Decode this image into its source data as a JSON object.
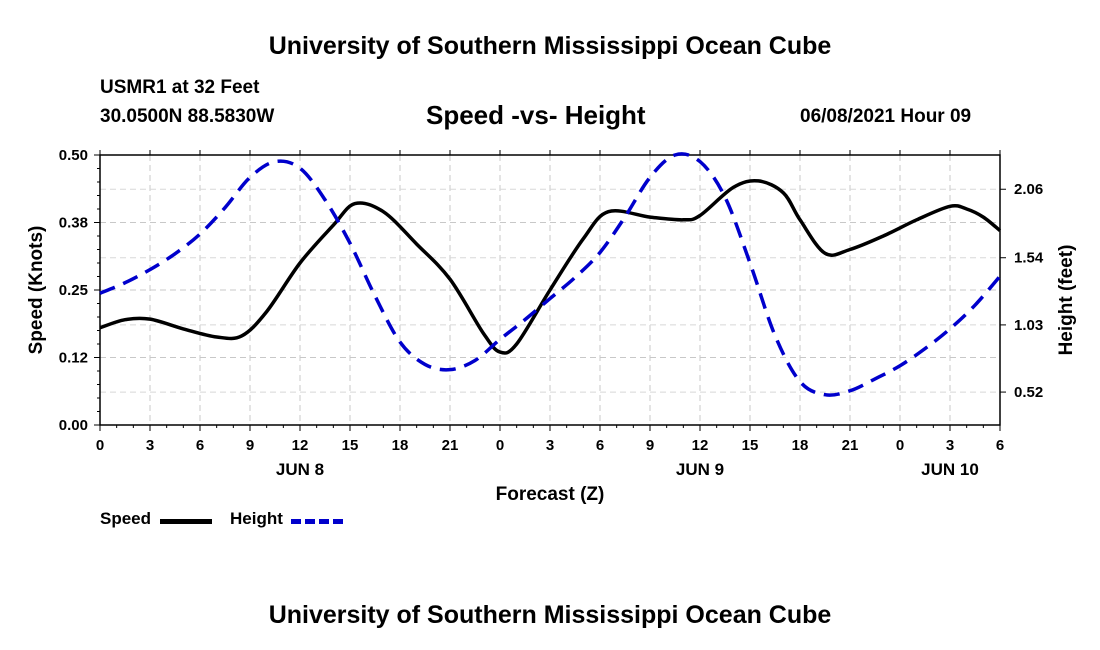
{
  "header": {
    "title": "University of Southern Mississippi Ocean Cube",
    "station": "USMR1 at 32 Feet",
    "coords": "30.0500N  88.5830W",
    "subtitle": "Speed -vs- Height",
    "datetime": "06/08/2021 Hour 09"
  },
  "footer": {
    "title": "University of Southern Mississippi Ocean Cube"
  },
  "legend": {
    "speed_label": "Speed",
    "height_label": "Height"
  },
  "chart_data": {
    "type": "line",
    "title": "Speed -vs- Height",
    "xlabel": "Forecast (Z)",
    "ylabel": "Speed (Knots)",
    "y2label": "Height (feet)",
    "grid": true,
    "x_hours_range": [
      0,
      54
    ],
    "x_tick_hours": [
      0,
      3,
      6,
      9,
      12,
      15,
      18,
      21,
      24,
      27,
      30,
      33,
      36,
      39,
      42,
      45,
      48,
      51,
      54
    ],
    "x_tick_labels": [
      "0",
      "3",
      "6",
      "9",
      "12",
      "15",
      "18",
      "21",
      "0",
      "3",
      "6",
      "9",
      "12",
      "15",
      "18",
      "21",
      "0",
      "3",
      "6"
    ],
    "day_labels": [
      {
        "hour": 12,
        "label": "JUN 8"
      },
      {
        "hour": 36,
        "label": "JUN 9"
      },
      {
        "hour": 51,
        "label": "JUN 10"
      }
    ],
    "y_left": {
      "range": [
        0,
        0.5
      ],
      "ticks": [
        0.0,
        0.125,
        0.25,
        0.375,
        0.5
      ],
      "tick_labels": [
        "0.00",
        "0.12",
        "0.25",
        "0.38",
        "0.50"
      ]
    },
    "y_right": {
      "range": [
        0.27,
        2.32
      ],
      "ticks": [
        0.52,
        1.03,
        1.54,
        2.06
      ],
      "tick_labels": [
        "0.52",
        "1.03",
        "1.54",
        "2.06"
      ]
    },
    "series": [
      {
        "name": "Speed",
        "axis": "left",
        "color": "#000000",
        "style": "solid",
        "x": [
          0,
          1.5,
          3,
          5,
          7,
          8.5,
          10,
          12,
          14,
          15.3,
          17,
          19,
          21,
          23,
          24,
          25,
          27,
          29,
          30.5,
          33,
          35,
          36,
          38,
          39.5,
          41,
          42,
          43.5,
          45,
          47,
          49,
          51,
          52,
          53,
          54
        ],
        "values": [
          0.18,
          0.195,
          0.196,
          0.178,
          0.163,
          0.165,
          0.21,
          0.3,
          0.37,
          0.41,
          0.395,
          0.335,
          0.27,
          0.17,
          0.135,
          0.15,
          0.25,
          0.345,
          0.395,
          0.385,
          0.38,
          0.388,
          0.44,
          0.452,
          0.43,
          0.38,
          0.318,
          0.325,
          0.35,
          0.38,
          0.405,
          0.4,
          0.385,
          0.36
        ]
      },
      {
        "name": "Height",
        "axis": "right",
        "color": "#0000cc",
        "style": "dashed",
        "x": [
          0,
          1.5,
          3,
          4.5,
          6,
          7.5,
          9,
          10.5,
          12,
          13.5,
          15,
          16.5,
          18,
          19.5,
          21,
          22.5,
          24,
          25.5,
          27,
          28.5,
          30,
          31.5,
          33,
          34.5,
          36,
          37.5,
          39,
          40.5,
          42,
          43.5,
          45,
          46.5,
          48,
          49.5,
          51,
          52.5,
          54
        ],
        "values": [
          1.27,
          1.35,
          1.45,
          1.57,
          1.72,
          1.92,
          2.15,
          2.27,
          2.22,
          1.98,
          1.65,
          1.25,
          0.9,
          0.73,
          0.69,
          0.76,
          0.92,
          1.07,
          1.23,
          1.39,
          1.58,
          1.85,
          2.15,
          2.32,
          2.27,
          2.0,
          1.5,
          0.95,
          0.6,
          0.5,
          0.53,
          0.62,
          0.72,
          0.85,
          1.0,
          1.18,
          1.4
        ]
      }
    ]
  }
}
